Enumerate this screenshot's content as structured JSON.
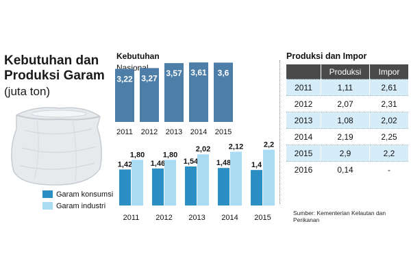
{
  "header": {
    "title_line1": "Kebutuhan dan",
    "title_line2": "Produksi Garam",
    "unit": "(juta ton)"
  },
  "legend": {
    "konsumsi": "Garam konsumsi",
    "industri": "Garam industri"
  },
  "colors": {
    "nasional": "#4d7ea8",
    "konsumsi": "#2b8fc3",
    "industri": "#a9dcf3",
    "table_header": "#4a4a4a",
    "table_shade": "#d6ecf8"
  },
  "chart_data": [
    {
      "type": "bar",
      "title": "Kebutuhan",
      "subtitle": "Nasional",
      "categories": [
        "2011",
        "2012",
        "2013",
        "2014",
        "2015"
      ],
      "values": [
        3.22,
        3.27,
        3.57,
        3.61,
        3.6
      ],
      "value_labels": [
        "3,22",
        "3,27",
        "3,57",
        "3,61",
        "3,6"
      ],
      "ylim": [
        0,
        3.7
      ],
      "grid": false
    },
    {
      "type": "bar",
      "categories": [
        "2011",
        "2012",
        "2013",
        "2014",
        "2015"
      ],
      "series": [
        {
          "name": "Garam konsumsi",
          "values": [
            1.42,
            1.46,
            1.54,
            1.48,
            1.4
          ],
          "labels": [
            "1,42",
            "1,46",
            "1,54",
            "1,48",
            "1,4"
          ]
        },
        {
          "name": "Garam industri",
          "values": [
            1.8,
            1.8,
            2.02,
            2.12,
            2.2
          ],
          "labels": [
            "1,80",
            "1,80",
            "2,02",
            "2,12",
            "2,2"
          ]
        }
      ],
      "ylim": [
        0,
        2.35
      ],
      "legend": "bottom-left",
      "grid": false
    }
  ],
  "table": {
    "title": "Produksi dan Impor",
    "headers": [
      "",
      "Produksi",
      "Impor"
    ],
    "rows": [
      [
        "2011",
        "1,11",
        "2,61"
      ],
      [
        "2012",
        "2,07",
        "2,31"
      ],
      [
        "2013",
        "1,08",
        "2,02"
      ],
      [
        "2014",
        "2,19",
        "2,25"
      ],
      [
        "2015",
        "2,9",
        "2,2"
      ],
      [
        "2016",
        "0,14",
        "-"
      ]
    ]
  },
  "source": "Sumber: Kementerian Kelautan dan Perikanan"
}
